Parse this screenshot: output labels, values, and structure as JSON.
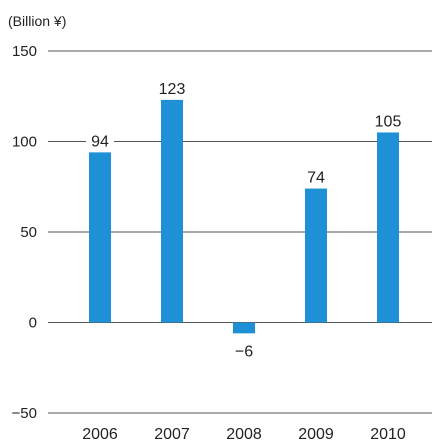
{
  "chart_data": {
    "type": "bar",
    "unit_label": "(Billion ¥)",
    "categories": [
      "2006",
      "2007",
      "2008",
      "2009",
      "2010"
    ],
    "values": [
      94,
      123,
      -6,
      74,
      105
    ],
    "value_labels": [
      "94",
      "123",
      "−6",
      "74",
      "105"
    ],
    "y_ticks": [
      150,
      100,
      50,
      0,
      -50
    ],
    "y_tick_labels": [
      "150",
      "100",
      "50",
      "0",
      "−50"
    ],
    "ylim": [
      -50,
      150
    ],
    "grid": true,
    "bar_color": "#1e90d6"
  }
}
